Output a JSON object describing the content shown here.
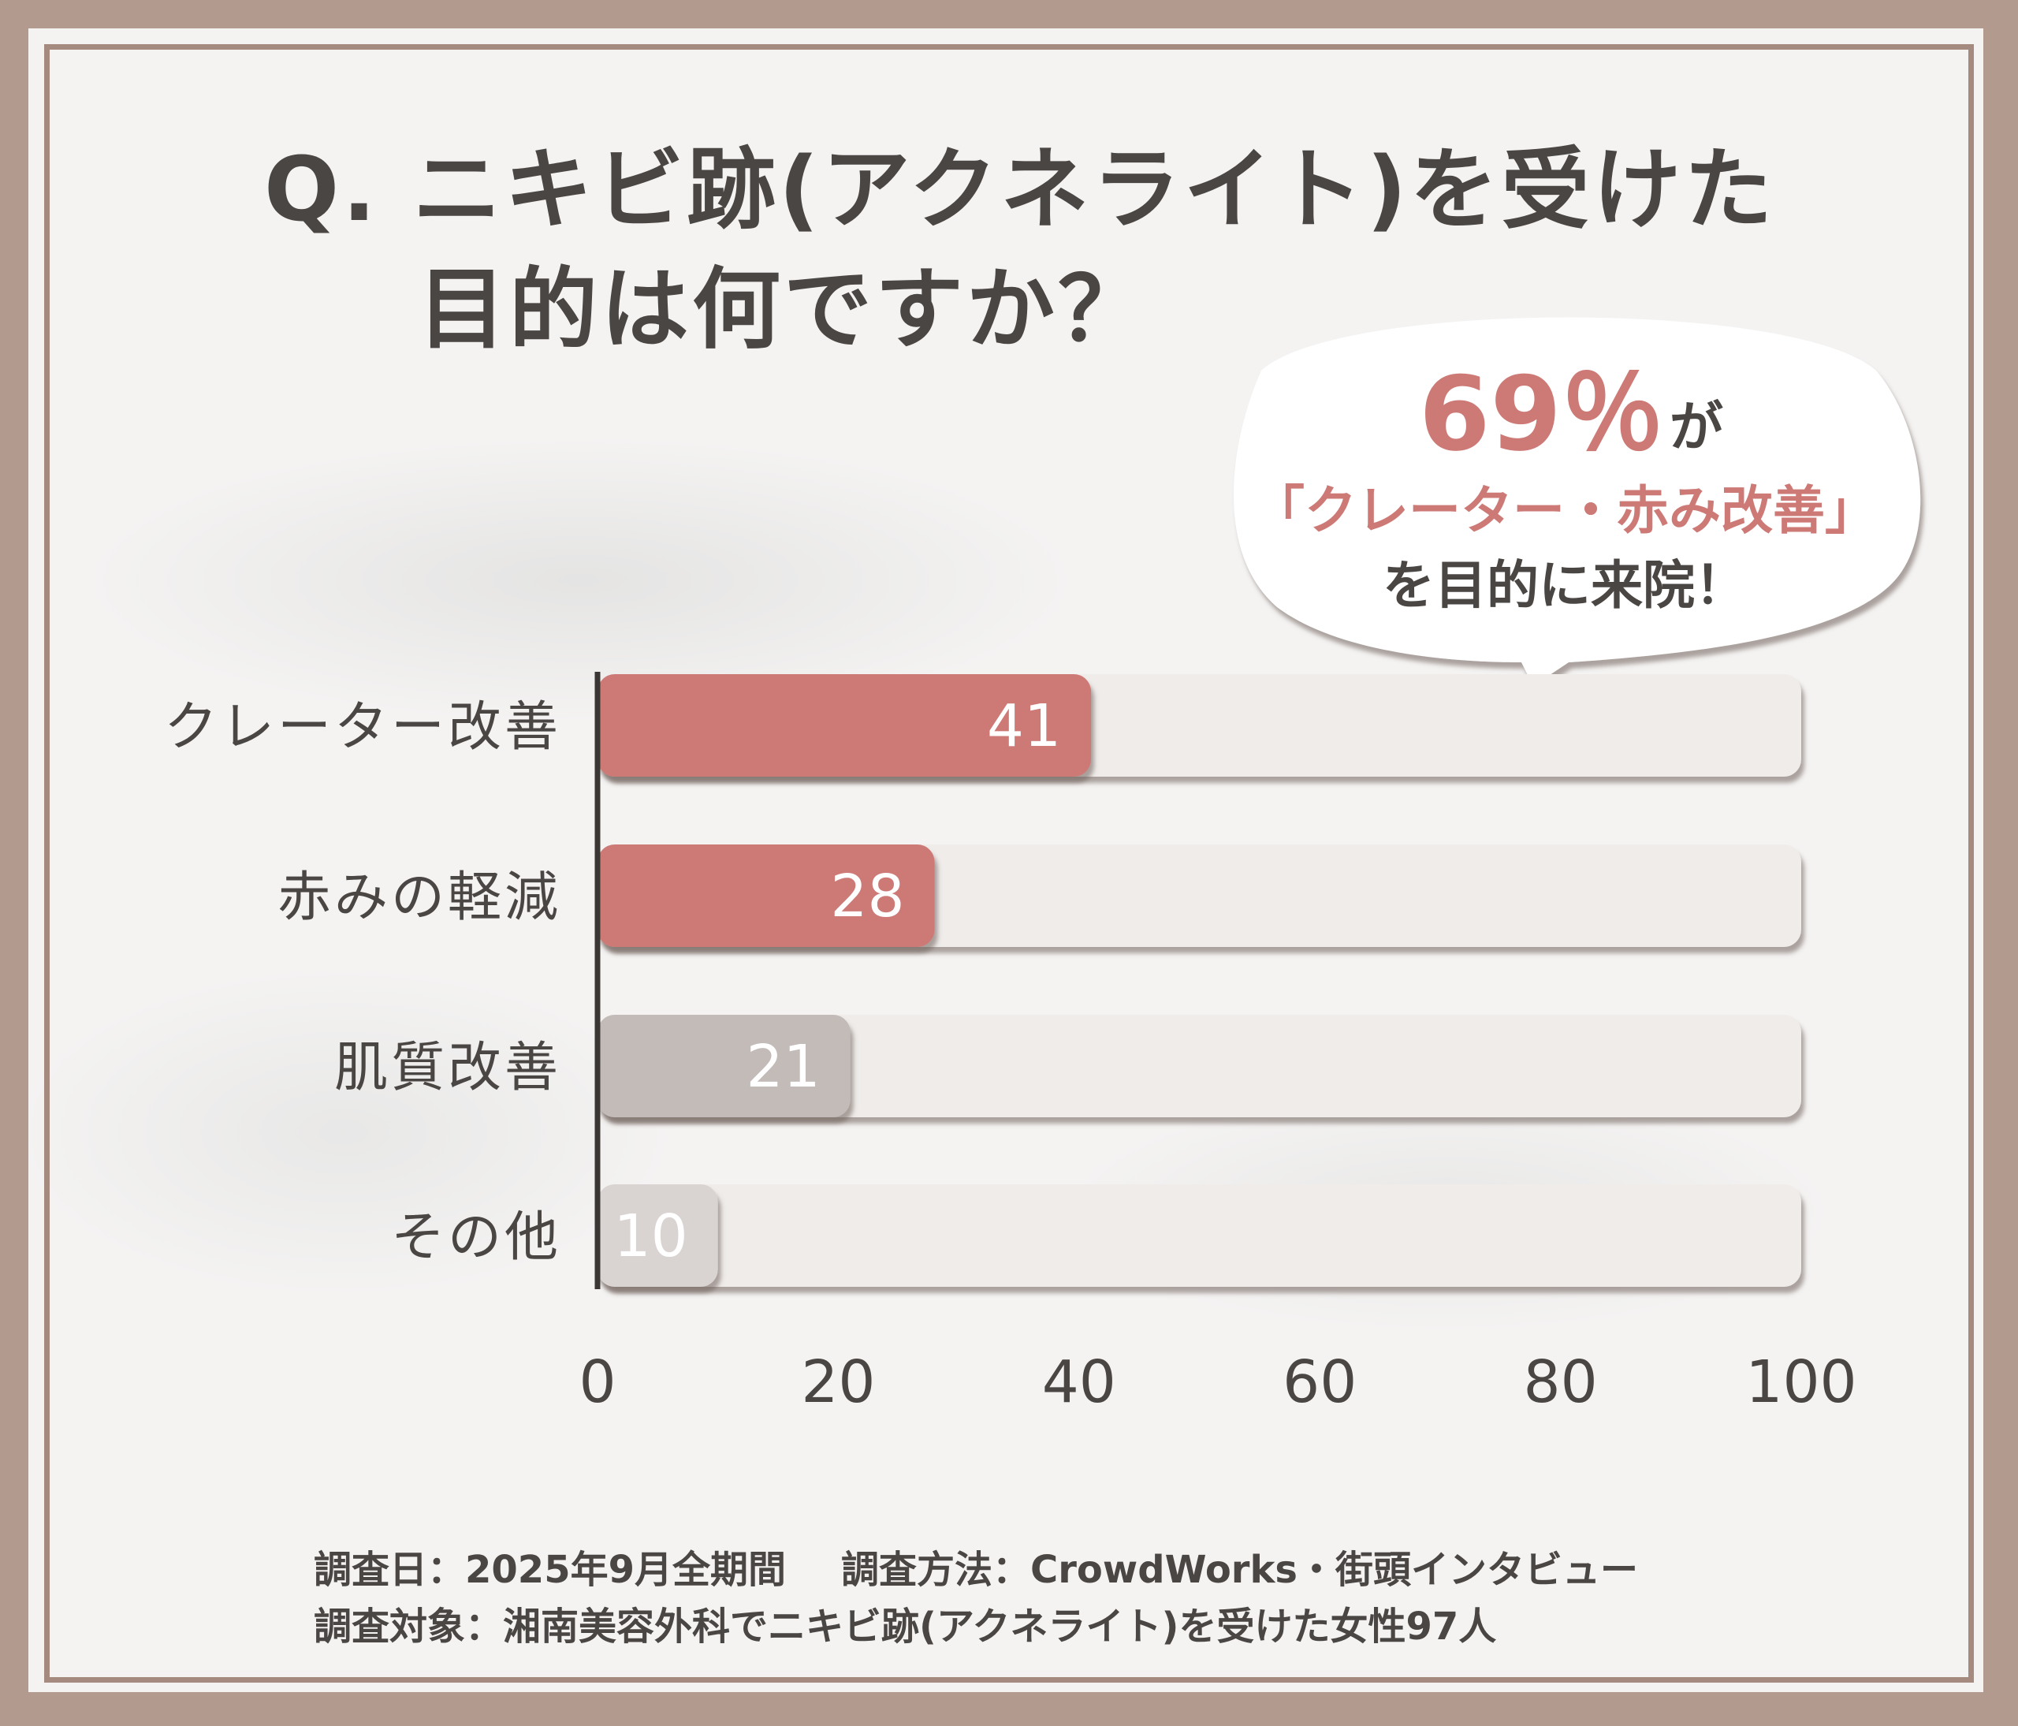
{
  "title_line1": "Q. ニキビ跡(アクネライト)を受けた",
  "title_line2": "目的は何ですか？",
  "callout": {
    "percent": "69％",
    "suffix": "が",
    "highlight": "「クレーター・赤み改善」",
    "line3": "を目的に来院！"
  },
  "chart_data": {
    "type": "bar",
    "orientation": "horizontal",
    "categories": [
      "クレーター改善",
      "赤みの軽減",
      "肌質改善",
      "その他"
    ],
    "values": [
      41,
      28,
      21,
      10
    ],
    "xlim": [
      0,
      100
    ],
    "xticks": [
      "0",
      "20",
      "40",
      "60",
      "80",
      "100"
    ],
    "bar_colors": [
      "#cd7a77",
      "#cd7a77",
      "#c2bbb8",
      "#d9d4d2"
    ],
    "track_color": "#efecea",
    "grid": false
  },
  "footer": {
    "date": "調査日：2025年9月全期間",
    "method": "調査方法：CrowdWorks・街頭インタビュー",
    "target": "調査対象：湘南美容外科でニキビ跡(アクネライト)を受けた女性97人"
  }
}
